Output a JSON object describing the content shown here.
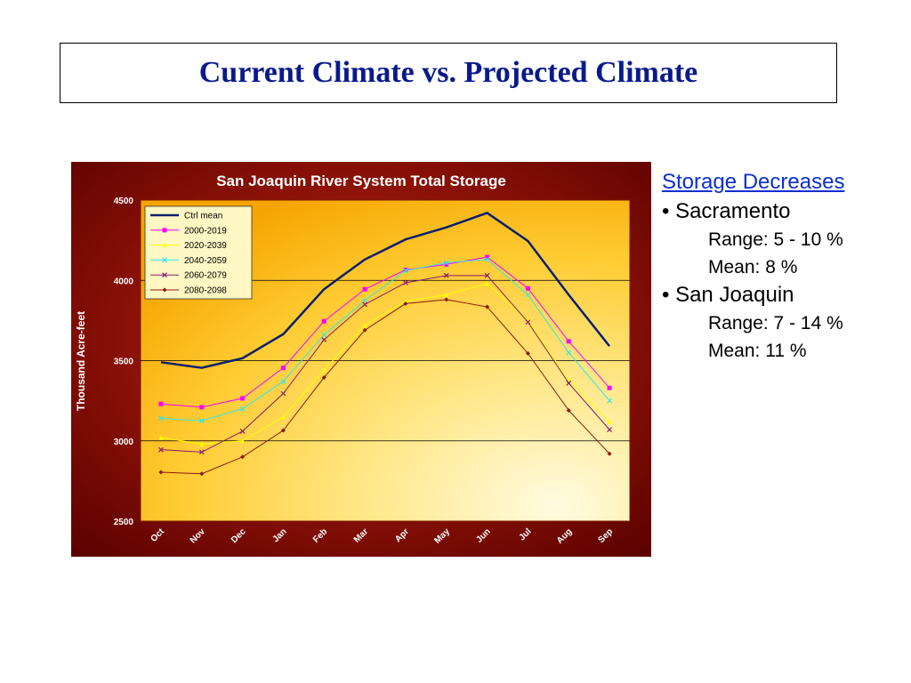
{
  "slide": {
    "title": "Current Climate vs. Projected Climate"
  },
  "notes": {
    "heading": "Storage Decreases",
    "groups": [
      {
        "bullet": "• Sacramento",
        "range": "Range: 5 - 10 %",
        "mean": "Mean: 8 %"
      },
      {
        "bullet": "• San Joaquin",
        "range": "Range: 7 - 14 %",
        "mean": "Mean: 11 %"
      }
    ]
  },
  "chart_data": {
    "type": "line",
    "title": "San Joaquin River System Total Storage",
    "xlabel": "",
    "ylabel": "Thousand Acre-feet",
    "ylim": [
      2500,
      4500
    ],
    "yticks": [
      "2500",
      "3000",
      "3500",
      "4000",
      "4500"
    ],
    "grid": "horizontal at 3000, 3500, 4000",
    "legend_position": "top-left",
    "categories": [
      "Oct",
      "Nov",
      "Dec",
      "Jan",
      "Feb",
      "Mar",
      "Apr",
      "May",
      "Jun",
      "Jul",
      "Aug",
      "Sep"
    ],
    "colors": {
      "frame": "#6b0000",
      "plot_bg_light": "#fff6c8",
      "plot_bg_dark": "#f7a800"
    },
    "series": [
      {
        "name": "Ctrl mean",
        "color": "#0b1f6e",
        "marker": "none",
        "width": 2.5,
        "values": [
          3490,
          3455,
          3515,
          3665,
          3945,
          4130,
          4255,
          4330,
          4420,
          4245,
          3910,
          3590
        ]
      },
      {
        "name": "2000-2019",
        "color": "#ff00ff",
        "marker": "square",
        "width": 1,
        "values": [
          3230,
          3210,
          3265,
          3455,
          3745,
          3945,
          4065,
          4100,
          4145,
          3950,
          3620,
          3330
        ]
      },
      {
        "name": "2020-2039",
        "color": "#ffff00",
        "marker": "triangle",
        "width": 1,
        "values": [
          3020,
          2980,
          3000,
          3150,
          3440,
          3720,
          3870,
          3910,
          3980,
          3750,
          3380,
          3120
        ]
      },
      {
        "name": "2040-2059",
        "color": "#33e6e6",
        "marker": "x",
        "width": 1,
        "values": [
          3140,
          3125,
          3200,
          3370,
          3660,
          3875,
          4060,
          4110,
          4130,
          3910,
          3550,
          3250
        ]
      },
      {
        "name": "2060-2079",
        "color": "#8b1a6b",
        "marker": "x",
        "width": 1,
        "values": [
          2945,
          2930,
          3060,
          3295,
          3630,
          3850,
          3985,
          4030,
          4030,
          3740,
          3360,
          3070
        ]
      },
      {
        "name": "2080-2098",
        "color": "#8b1a0e",
        "marker": "diamond",
        "width": 1,
        "values": [
          2805,
          2795,
          2900,
          3065,
          3395,
          3690,
          3855,
          3880,
          3835,
          3545,
          3190,
          2920
        ]
      }
    ]
  }
}
